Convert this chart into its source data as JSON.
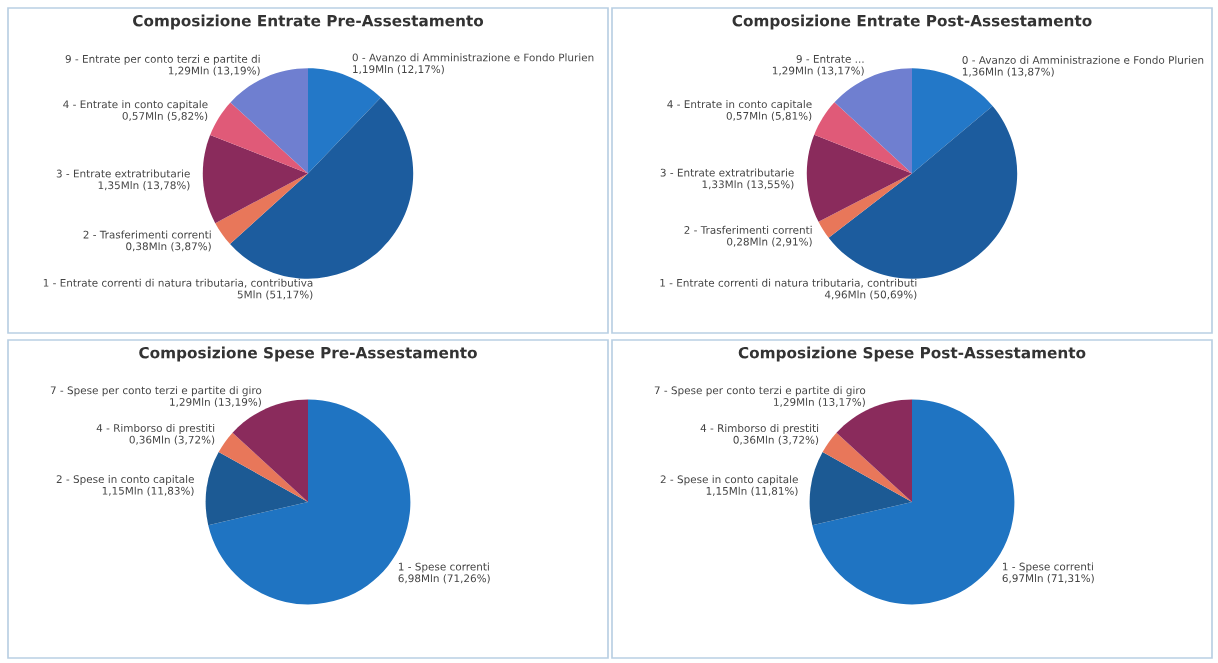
{
  "chart_data": [
    {
      "type": "pie",
      "title": "Composizione Entrate Pre-Assestamento",
      "categories": [
        "0 - Avanzo di Amministrazione e Fondo Plurien",
        "1 - Entrate correnti di natura tributaria, contributiva",
        "2 - Trasferimenti correnti",
        "3 - Entrate extratributarie",
        "4 - Entrate in conto capitale",
        "9 - Entrate per conto terzi e partite di"
      ],
      "values": [
        1.19,
        5,
        0.38,
        1.35,
        0.57,
        1.29
      ],
      "value_labels": [
        "1,19Mln (12,17%)",
        "5Mln (51,17%)",
        "0,38Mln (3,87%)",
        "1,35Mln (13,78%)",
        "0,57Mln (5,82%)",
        "1,29Mln (13,19%)"
      ],
      "colors": [
        "#2378c8",
        "#1c5c9e",
        "#e8775a",
        "#8a2b5c",
        "#e05a78",
        "#6f7fd0"
      ]
    },
    {
      "type": "pie",
      "title": "Composizione Entrate Post-Assestamento",
      "categories": [
        "0 - Avanzo di Amministrazione e Fondo Plurien",
        "1 - Entrate correnti di natura tributaria, contributi",
        "2 - Trasferimenti correnti",
        "3 - Entrate extratributarie",
        "4 - Entrate in conto capitale",
        "9 - Entrate ..."
      ],
      "values": [
        1.36,
        4.96,
        0.28,
        1.33,
        0.57,
        1.29
      ],
      "value_labels": [
        "1,36Mln (13,87%)",
        "4,96Mln (50,69%)",
        "0,28Mln (2,91%)",
        "1,33Mln (13,55%)",
        "0,57Mln (5,81%)",
        "1,29Mln (13,17%)"
      ],
      "colors": [
        "#2378c8",
        "#1c5c9e",
        "#e8775a",
        "#8a2b5c",
        "#e05a78",
        "#6f7fd0"
      ]
    },
    {
      "type": "pie",
      "title": "Composizione Spese Pre-Assestamento",
      "categories": [
        "1 - Spese correnti",
        "2 - Spese in conto capitale",
        "4 - Rimborso di prestiti",
        "7 - Spese per conto terzi e partite di giro"
      ],
      "values": [
        6.98,
        1.15,
        0.36,
        1.29
      ],
      "value_labels": [
        "6,98Mln (71,26%)",
        "1,15Mln (11,83%)",
        "0,36Mln (3,72%)",
        "1,29Mln (13,19%)"
      ],
      "colors": [
        "#1f74c2",
        "#1c5a94",
        "#e8775a",
        "#8a2b5c"
      ]
    },
    {
      "type": "pie",
      "title": "Composizione Spese Post-Assestamento",
      "categories": [
        "1 - Spese correnti",
        "2 - Spese in conto capitale",
        "4 - Rimborso di prestiti",
        "7 - Spese per conto terzi e partite di giro"
      ],
      "values": [
        6.97,
        1.15,
        0.36,
        1.29
      ],
      "value_labels": [
        "6,97Mln (71,31%)",
        "1,15Mln (11,81%)",
        "0,36Mln (3,72%)",
        "1,29Mln (13,17%)"
      ],
      "colors": [
        "#1f74c2",
        "#1c5a94",
        "#e8775a",
        "#8a2b5c"
      ]
    }
  ]
}
